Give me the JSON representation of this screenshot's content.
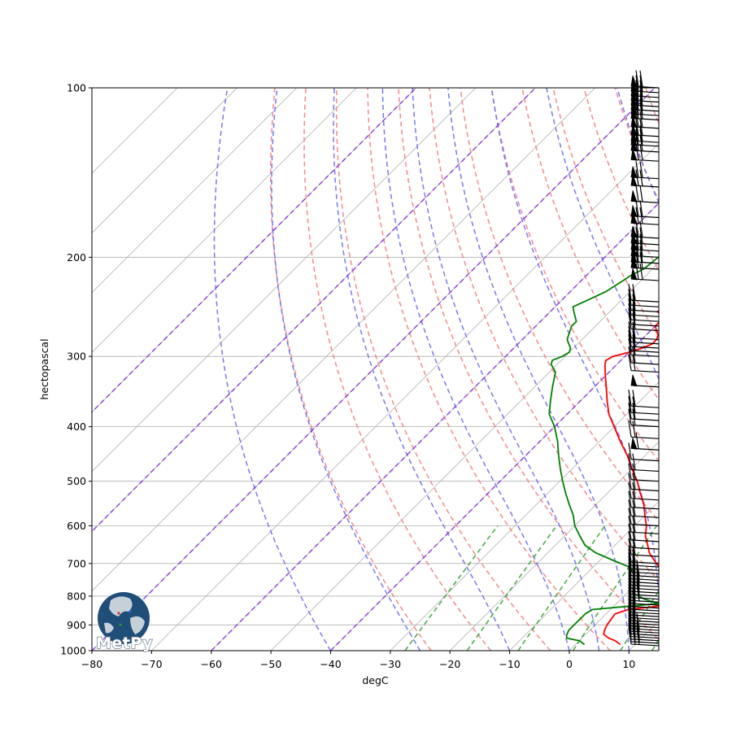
{
  "chart_data": {
    "type": "line",
    "subtype": "skew-t log-p sounding",
    "xlabel": "degC",
    "ylabel": "hectopascal",
    "xlim": [
      -80,
      15
    ],
    "ylim": [
      1000,
      100
    ],
    "y_scale": "log",
    "x_ticks": [
      -80,
      -70,
      -60,
      -50,
      -40,
      -30,
      -20,
      -10,
      0,
      10
    ],
    "y_ticks": [
      1000,
      900,
      800,
      700,
      600,
      500,
      400,
      300,
      200,
      100
    ],
    "grid": true,
    "colors": {
      "temperature": "#ff0000",
      "dewpoint": "#008000",
      "dry_adiabats": "#f08080",
      "moist_adiabats": "#6a6aef",
      "mixing_ratio": "#2ca02c",
      "isotherm_highlight": "#8a2be2",
      "grid": "#b0b0b0"
    },
    "series": [
      {
        "key": "temperature",
        "points": [
          [
            975,
            7.5
          ],
          [
            960,
            6
          ],
          [
            950,
            4.5
          ],
          [
            935,
            3
          ],
          [
            920,
            2.5
          ],
          [
            900,
            2
          ],
          [
            860,
            1.5
          ],
          [
            845,
            3
          ],
          [
            830,
            9
          ],
          [
            820,
            13
          ],
          [
            810,
            12
          ],
          [
            800,
            11
          ],
          [
            790,
            10
          ],
          [
            770,
            8
          ],
          [
            750,
            6
          ],
          [
            730,
            3
          ],
          [
            710,
            1
          ],
          [
            690,
            -1
          ],
          [
            670,
            -3
          ],
          [
            650,
            -4.5
          ],
          [
            625,
            -6.5
          ],
          [
            600,
            -8
          ],
          [
            575,
            -10
          ],
          [
            550,
            -12
          ],
          [
            525,
            -14.5
          ],
          [
            500,
            -17
          ],
          [
            475,
            -20
          ],
          [
            450,
            -23
          ],
          [
            425,
            -26.5
          ],
          [
            400,
            -30
          ],
          [
            380,
            -33
          ],
          [
            360,
            -35.5
          ],
          [
            340,
            -38
          ],
          [
            325,
            -40
          ],
          [
            310,
            -42
          ],
          [
            305,
            -42.5
          ],
          [
            300,
            -42
          ],
          [
            295,
            -40
          ],
          [
            290,
            -38.5
          ],
          [
            285,
            -37.5
          ],
          [
            280,
            -37.5
          ],
          [
            275,
            -38
          ],
          [
            270,
            -39
          ],
          [
            265,
            -40
          ],
          [
            260,
            -40
          ],
          [
            255,
            -40
          ],
          [
            250,
            -42
          ],
          [
            245,
            -42
          ],
          [
            240,
            -42
          ],
          [
            235,
            -42
          ],
          [
            230,
            -41
          ],
          [
            225,
            -40.5
          ],
          [
            220,
            -40
          ],
          [
            215,
            -39
          ],
          [
            210,
            -37.5
          ],
          [
            205,
            -36
          ],
          [
            200,
            -35.5
          ],
          [
            195,
            -35
          ],
          [
            190,
            -35
          ],
          [
            185,
            -34
          ],
          [
            180,
            -33
          ],
          [
            175,
            -32.5
          ],
          [
            170,
            -32
          ],
          [
            165,
            -31.5
          ],
          [
            160,
            -31.5
          ],
          [
            155,
            -31.5
          ],
          [
            150,
            -31.5
          ],
          [
            145,
            -32
          ],
          [
            140,
            -32
          ],
          [
            135,
            -32
          ],
          [
            130,
            -32
          ],
          [
            125,
            -31.5
          ],
          [
            120,
            -29
          ],
          [
            115,
            -28
          ],
          [
            110,
            -27
          ],
          [
            106,
            -26
          ],
          [
            103,
            -25
          ],
          [
            100,
            -24.5
          ]
        ]
      },
      {
        "key": "dewpoint",
        "points": [
          [
            975,
            1.5
          ],
          [
            960,
            0
          ],
          [
            950,
            -2.5
          ],
          [
            940,
            -3
          ],
          [
            920,
            -3.5
          ],
          [
            900,
            -3.5
          ],
          [
            880,
            -3.5
          ],
          [
            860,
            -3.5
          ],
          [
            845,
            -3
          ],
          [
            835,
            2
          ],
          [
            825,
            7
          ],
          [
            810,
            4
          ],
          [
            790,
            1
          ],
          [
            770,
            0
          ],
          [
            750,
            -1
          ],
          [
            730,
            -2
          ],
          [
            710,
            -4
          ],
          [
            690,
            -8
          ],
          [
            670,
            -12
          ],
          [
            650,
            -15
          ],
          [
            625,
            -17.5
          ],
          [
            600,
            -20
          ],
          [
            575,
            -22
          ],
          [
            550,
            -24.5
          ],
          [
            525,
            -27
          ],
          [
            500,
            -29.5
          ],
          [
            475,
            -32
          ],
          [
            450,
            -34.5
          ],
          [
            425,
            -37
          ],
          [
            400,
            -40
          ],
          [
            380,
            -43
          ],
          [
            360,
            -45
          ],
          [
            340,
            -47
          ],
          [
            320,
            -49
          ],
          [
            310,
            -51
          ],
          [
            305,
            -51.5
          ],
          [
            300,
            -50.5
          ],
          [
            295,
            -50
          ],
          [
            290,
            -50.5
          ],
          [
            285,
            -51.5
          ],
          [
            280,
            -52.5
          ],
          [
            275,
            -53
          ],
          [
            270,
            -53.5
          ],
          [
            265,
            -54
          ],
          [
            260,
            -54
          ],
          [
            255,
            -55
          ],
          [
            250,
            -56
          ],
          [
            245,
            -57
          ],
          [
            240,
            -56
          ],
          [
            230,
            -54
          ],
          [
            220,
            -53
          ],
          [
            215,
            -52.5
          ],
          [
            210,
            -51.5
          ],
          [
            200,
            -51
          ],
          [
            190,
            -51.5
          ],
          [
            180,
            -52
          ],
          [
            170,
            -52
          ],
          [
            160,
            -52.5
          ],
          [
            150,
            -53.5
          ],
          [
            140,
            -54.5
          ],
          [
            135,
            -55
          ],
          [
            130,
            -55
          ],
          [
            125,
            -53
          ],
          [
            120,
            -52.5
          ],
          [
            115,
            -52.5
          ],
          [
            110,
            -52
          ],
          [
            106,
            -51
          ],
          [
            103,
            -49.5
          ],
          [
            100,
            -48.5
          ]
        ]
      }
    ],
    "dry_adiabats_theta_K": [
      250,
      260,
      270,
      280,
      290,
      300,
      310,
      320,
      330,
      340,
      350,
      360,
      370,
      380
    ],
    "moist_adiabats_start_degC": [
      -40,
      -25,
      -10,
      0,
      5,
      10,
      15,
      20,
      25,
      30
    ],
    "mixing_ratio_gkg": [
      0.4,
      1,
      2,
      4,
      7,
      10,
      16,
      24,
      32
    ],
    "isotherms_highlight_degC": [
      -120,
      -100,
      -80,
      -60,
      -40
    ],
    "wind_barbs": [
      {
        "p": 980,
        "n": 3
      },
      {
        "p": 970,
        "n": 3
      },
      {
        "p": 960,
        "n": 3
      },
      {
        "p": 950,
        "n": 3
      },
      {
        "p": 940,
        "n": 2
      },
      {
        "p": 930,
        "n": 3
      },
      {
        "p": 920,
        "n": 3
      },
      {
        "p": 910,
        "n": 2
      },
      {
        "p": 900,
        "n": 2
      },
      {
        "p": 890,
        "n": 2
      },
      {
        "p": 880,
        "n": 2
      },
      {
        "p": 870,
        "n": 2
      },
      {
        "p": 860,
        "n": 2
      },
      {
        "p": 850,
        "n": 2
      },
      {
        "p": 840,
        "n": 2
      },
      {
        "p": 830,
        "n": 2
      },
      {
        "p": 820,
        "n": 3
      },
      {
        "p": 810,
        "n": 3
      },
      {
        "p": 800,
        "n": 3
      },
      {
        "p": 790,
        "n": 3
      },
      {
        "p": 780,
        "n": 3
      },
      {
        "p": 770,
        "n": 3
      },
      {
        "p": 760,
        "n": 3
      },
      {
        "p": 750,
        "n": 3
      },
      {
        "p": 740,
        "n": 3
      },
      {
        "p": 730,
        "n": 2
      },
      {
        "p": 720,
        "n": 2
      },
      {
        "p": 710,
        "n": 2
      },
      {
        "p": 700,
        "n": 2
      },
      {
        "p": 680,
        "n": 2
      },
      {
        "p": 660,
        "n": 2
      },
      {
        "p": 640,
        "n": 2
      },
      {
        "p": 620,
        "n": 2
      },
      {
        "p": 600,
        "n": 2
      },
      {
        "p": 580,
        "n": 2
      },
      {
        "p": 560,
        "n": 2
      },
      {
        "p": 540,
        "n": 2
      },
      {
        "p": 520,
        "n": 2
      },
      {
        "p": 500,
        "n": 2
      },
      {
        "p": 480,
        "n": 2
      },
      {
        "p": 460,
        "n": 1
      },
      {
        "p": 440,
        "n": 1,
        "flag": 1
      },
      {
        "p": 420,
        "n": 2
      },
      {
        "p": 400,
        "n": 2
      },
      {
        "p": 390,
        "n": 2
      },
      {
        "p": 380,
        "n": 2
      },
      {
        "p": 370,
        "n": 2
      },
      {
        "p": 340,
        "n": 0,
        "flag": 1
      },
      {
        "p": 320,
        "n": 2
      },
      {
        "p": 310,
        "n": 2
      },
      {
        "p": 300,
        "n": 2
      },
      {
        "p": 295,
        "n": 2
      },
      {
        "p": 290,
        "n": 2
      },
      {
        "p": 285,
        "n": 2
      },
      {
        "p": 280,
        "n": 2
      },
      {
        "p": 270,
        "n": 2
      },
      {
        "p": 265,
        "n": 2
      },
      {
        "p": 260,
        "n": 2
      },
      {
        "p": 255,
        "n": 2
      },
      {
        "p": 250,
        "n": 2
      },
      {
        "p": 245,
        "n": 2
      },
      {
        "p": 240,
        "n": 2
      },
      {
        "p": 220,
        "n": 2,
        "flag": 1
      },
      {
        "p": 210,
        "n": 2,
        "flag": 1
      },
      {
        "p": 205,
        "n": 2,
        "flag": 1
      },
      {
        "p": 200,
        "n": 2,
        "flag": 1
      },
      {
        "p": 195,
        "n": 2,
        "flag": 1
      },
      {
        "p": 190,
        "n": 2,
        "flag": 1
      },
      {
        "p": 185,
        "n": 2,
        "flag": 1
      },
      {
        "p": 175,
        "n": 2,
        "flag": 1
      },
      {
        "p": 170,
        "n": 2,
        "flag": 1
      },
      {
        "p": 160,
        "n": 2,
        "flag": 1
      },
      {
        "p": 150,
        "n": 2,
        "flag": 1
      },
      {
        "p": 145,
        "n": 2,
        "flag": 1
      },
      {
        "p": 135,
        "n": 2,
        "flag": 1
      },
      {
        "p": 130,
        "n": 2,
        "flag": 1
      },
      {
        "p": 127,
        "n": 2,
        "flag": 1
      },
      {
        "p": 125,
        "n": 2,
        "flag": 1
      },
      {
        "p": 122,
        "n": 2,
        "flag": 1
      },
      {
        "p": 118,
        "n": 2,
        "flag": 1
      },
      {
        "p": 114,
        "n": 2,
        "flag": 1
      },
      {
        "p": 112,
        "n": 2,
        "flag": 1
      },
      {
        "p": 110,
        "n": 2,
        "flag": 1
      },
      {
        "p": 108,
        "n": 2,
        "flag": 1
      },
      {
        "p": 106,
        "n": 2,
        "flag": 1
      },
      {
        "p": 104,
        "n": 2,
        "flag": 1
      },
      {
        "p": 102,
        "n": 2,
        "flag": 1
      },
      {
        "p": 100,
        "n": 2,
        "flag": 1
      }
    ]
  },
  "logo": {
    "text": "MetPy",
    "icon": "globe-logo-icon",
    "colors": {
      "globe": "#1f4e79",
      "land": "#c5d0d9",
      "text_outline": "#6f7f90"
    }
  }
}
